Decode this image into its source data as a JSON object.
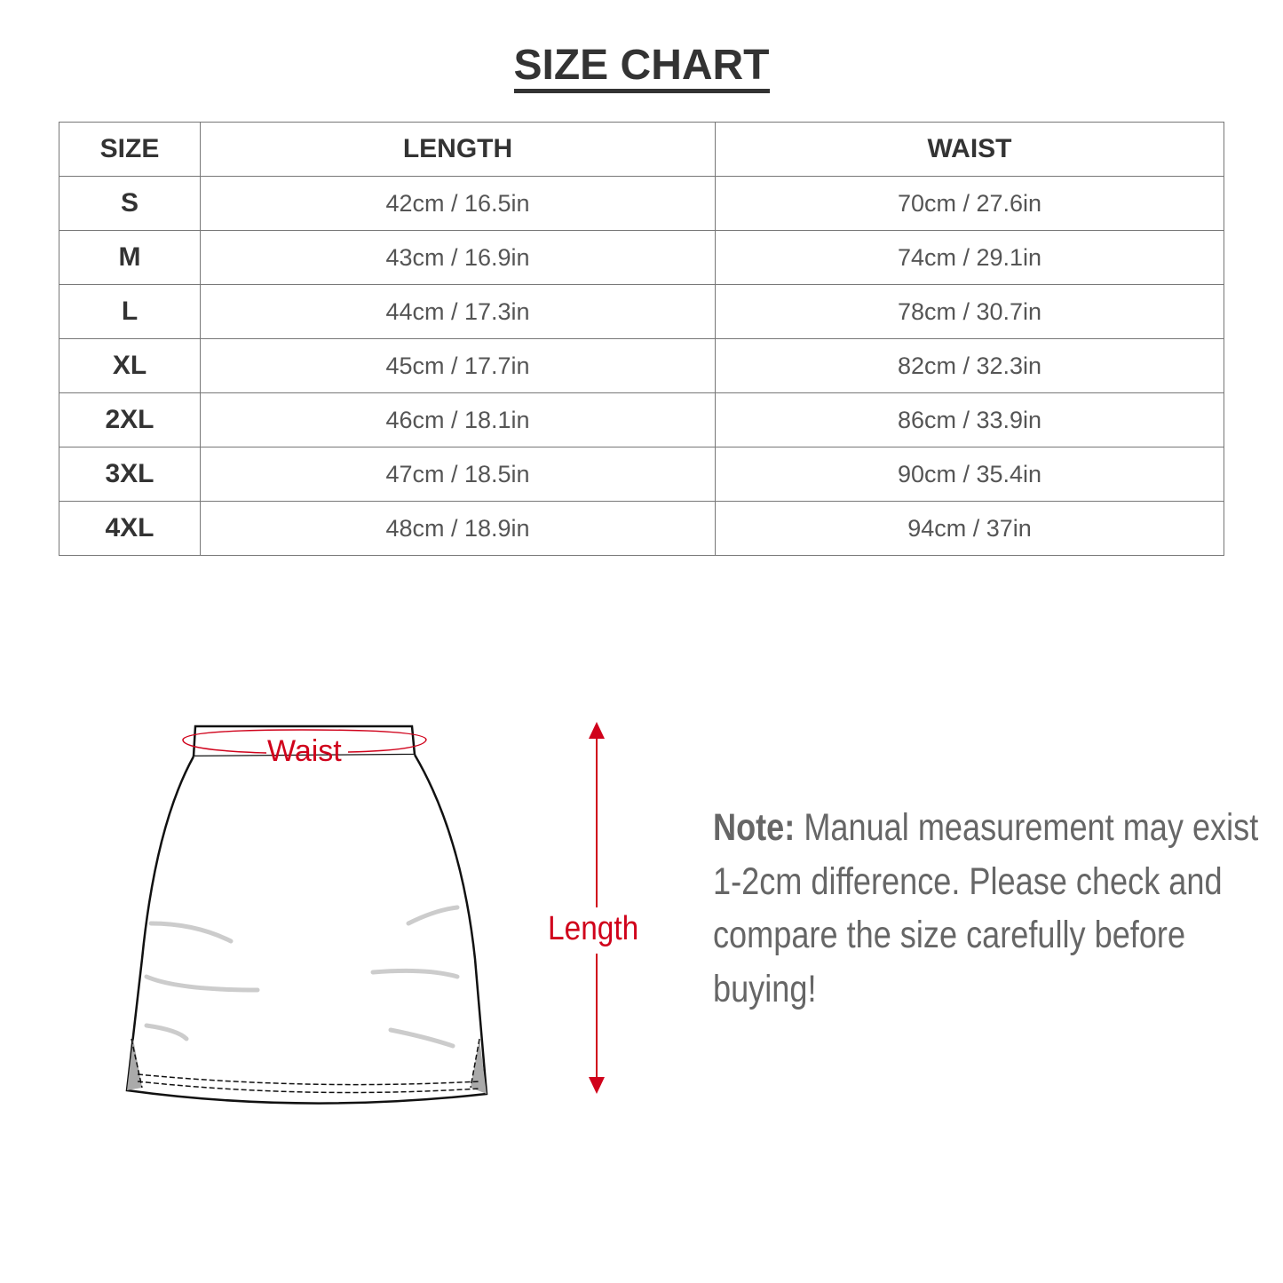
{
  "title": "SIZE CHART",
  "table": {
    "headers": [
      "SIZE",
      "LENGTH",
      "WAIST"
    ],
    "rows": [
      [
        "S",
        "42cm / 16.5in",
        "70cm / 27.6in"
      ],
      [
        "M",
        "43cm / 16.9in",
        "74cm / 29.1in"
      ],
      [
        "L",
        "44cm / 17.3in",
        "78cm / 30.7in"
      ],
      [
        "XL",
        "45cm / 17.7in",
        "82cm / 32.3in"
      ],
      [
        "2XL",
        "46cm / 18.1in",
        "86cm / 33.9in"
      ],
      [
        "3XL",
        "47cm / 18.5in",
        "90cm / 35.4in"
      ],
      [
        "4XL",
        "48cm / 18.9in",
        "94cm / 37in"
      ]
    ]
  },
  "diagram": {
    "waist_label": "Waist",
    "length_label": "Length",
    "accent_color": "#d0021b"
  },
  "note": {
    "label": "Note:",
    "text": " Manual measurement may exist 1-2cm difference. Please check and compare the size carefully before buying!"
  }
}
